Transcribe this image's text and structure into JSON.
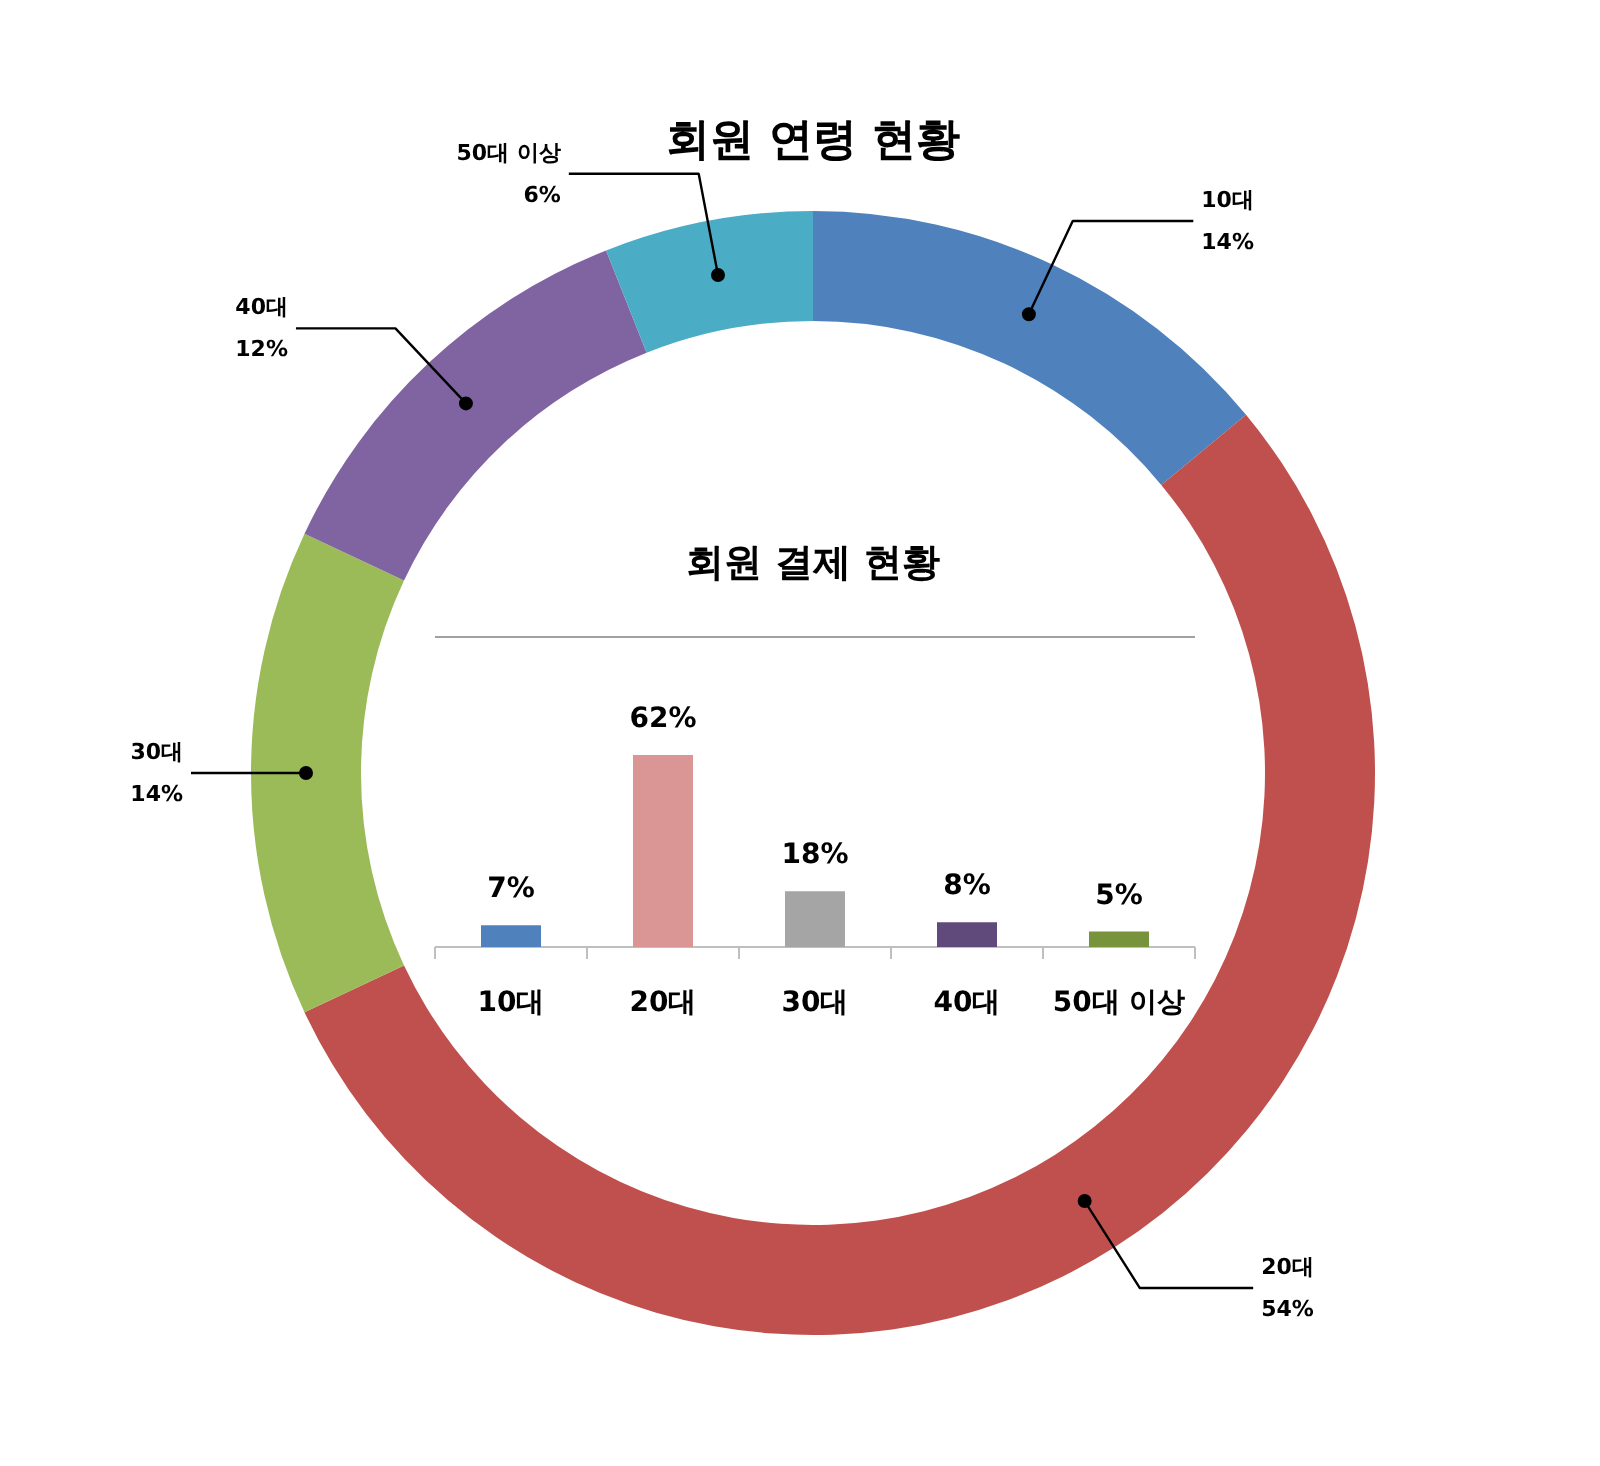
{
  "chart_data": [
    {
      "type": "donut",
      "title": "회원 연령 현황",
      "categories": [
        "10대",
        "20대",
        "30대",
        "40대",
        "50대 이상"
      ],
      "values": [
        14,
        54,
        14,
        12,
        6
      ],
      "colors": [
        "#4f81bd",
        "#c0504d",
        "#9bbb59",
        "#8064a2",
        "#4bacc6"
      ],
      "value_labels": [
        "14%",
        "54%",
        "14%",
        "12%",
        "6%"
      ]
    },
    {
      "type": "bar",
      "title": "회원 결제 현황",
      "categories": [
        "10대",
        "20대",
        "30대",
        "40대",
        "50대 이상"
      ],
      "values": [
        7,
        62,
        18,
        8,
        5
      ],
      "colors": [
        "#4f81bd",
        "#d99694",
        "#a5a5a5",
        "#604a7b",
        "#77933c"
      ],
      "value_labels": [
        "7%",
        "62%",
        "18%",
        "8%",
        "5%"
      ]
    }
  ]
}
